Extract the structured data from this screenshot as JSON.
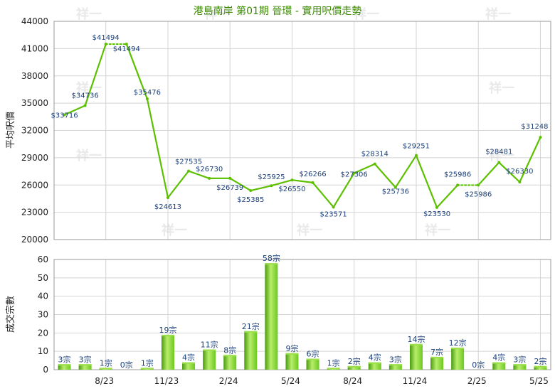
{
  "chart_data": [
    {
      "type": "line",
      "title": "港島南岸 第01期 晉環 - 實用呎價走勢",
      "ylabel": "平均呎價",
      "ylim": [
        20000,
        44000
      ],
      "yticks": [
        "44000",
        "41000",
        "38000",
        "35000",
        "32000",
        "29000",
        "26000",
        "23000",
        "20000"
      ],
      "grid": true,
      "line_color": "#5cc000",
      "series": [
        {
          "values": [
            33716,
            34736,
            41494,
            41494,
            35476,
            24613,
            27535,
            26730,
            26739,
            25385,
            25925,
            26550,
            26266,
            23571,
            27306,
            28314,
            25736,
            29251,
            23530,
            25986,
            25986,
            28481,
            26330,
            31248
          ],
          "labels": [
            "$33716",
            "$34736",
            "$41494",
            "$41494",
            "$35476",
            "$24613",
            "$27535",
            "$26730",
            "$26739",
            "$25385",
            "$25925",
            "$26550",
            "$26266",
            "$23571",
            "$27306",
            "$28314",
            "$25736",
            "$29251",
            "$23530",
            "$25986",
            "$25986",
            "$28481",
            "$26330",
            "$31248"
          ],
          "dotted_segments": [
            2,
            19
          ]
        }
      ]
    },
    {
      "type": "bar",
      "ylabel": "成交宗數",
      "ylim": [
        0,
        60
      ],
      "yticks": [
        "60",
        "50",
        "40",
        "30",
        "20",
        "10",
        "0"
      ],
      "categories": [
        "8/23",
        "11/23",
        "2/24",
        "5/24",
        "8/24",
        "11/24",
        "2/25",
        "5/25"
      ],
      "grid": true,
      "bar_color": "#6cc820",
      "values": [
        3,
        3,
        1,
        0,
        1,
        19,
        4,
        11,
        8,
        21,
        58,
        9,
        6,
        1,
        2,
        4,
        3,
        14,
        7,
        12,
        0,
        4,
        3,
        2
      ],
      "labels": [
        "3宗",
        "3宗",
        "1宗",
        "0宗",
        "1宗",
        "19宗",
        "4宗",
        "11宗",
        "8宗",
        "21宗",
        "58宗",
        "9宗",
        "6宗",
        "1宗",
        "2宗",
        "4宗",
        "3宗",
        "14宗",
        "7宗",
        "12宗",
        "0宗",
        "4宗",
        "3宗",
        "2宗"
      ]
    }
  ],
  "watermark": "祥一"
}
